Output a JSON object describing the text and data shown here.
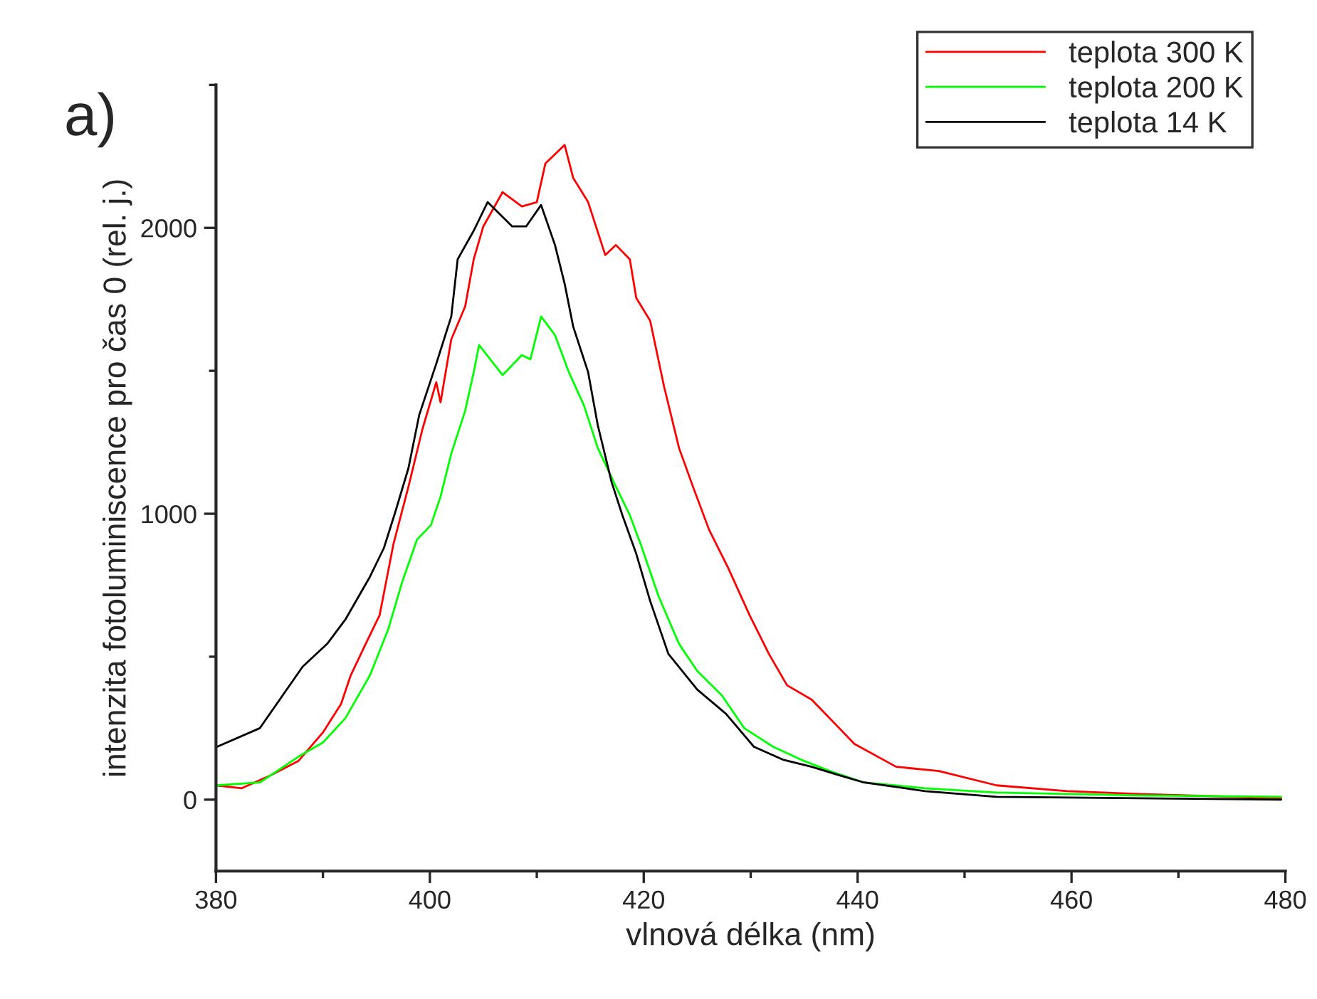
{
  "chart_data": {
    "type": "line",
    "xlabel": "vlnová délka (nm)",
    "ylabel": "intenzita fotoluminiscence pro čas 0 (rel. j.)",
    "annotations": [
      "a)"
    ],
    "xlim": [
      380,
      480
    ],
    "xticks": [
      380,
      400,
      420,
      440,
      460,
      480
    ],
    "ylim": [
      -250,
      2500
    ],
    "yticks": [
      0,
      1000,
      2000
    ],
    "grid": false,
    "legend": "top right",
    "marker": "none",
    "line_style": "solid",
    "series": [
      {
        "name": "teplota 300 K",
        "color": "#ff0000",
        "x": [
          380.0,
          382.4,
          385.1,
          387.7,
          390.0,
          391.7,
          392.6,
          394.0,
          395.3,
          396.6,
          398.0,
          399.3,
          400.6,
          401.0,
          402.0,
          403.3,
          404.1,
          405.0,
          406.8,
          408.6,
          410.0,
          410.8,
          412.6,
          413.4,
          414.8,
          416.4,
          417.4,
          418.7,
          419.3,
          420.6,
          421.9,
          423.3,
          424.6,
          426.1,
          427.9,
          429.9,
          431.7,
          433.4,
          435.7,
          437.9,
          439.7,
          443.6,
          447.6,
          453.0,
          459.6,
          466.3,
          479.6
        ],
        "values": [
          50,
          40,
          85,
          135,
          235,
          335,
          435,
          545,
          645,
          895,
          1095,
          1295,
          1460,
          1390,
          1610,
          1725,
          1890,
          2005,
          2125,
          2075,
          2090,
          2225,
          2290,
          2175,
          2090,
          1905,
          1940,
          1890,
          1755,
          1675,
          1445,
          1230,
          1095,
          945,
          810,
          645,
          510,
          400,
          350,
          265,
          195,
          115,
          100,
          50,
          30,
          20,
          5
        ]
      },
      {
        "name": "teplota 200 K",
        "color": "#00ff00",
        "x": [
          380.0,
          384.1,
          387.7,
          390.0,
          392.1,
          394.4,
          396.1,
          397.4,
          398.8,
          400.1,
          401.0,
          402.0,
          403.3,
          404.1,
          404.6,
          406.8,
          408.6,
          409.4,
          410.4,
          411.7,
          413.0,
          414.4,
          415.7,
          417.4,
          418.7,
          419.7,
          421.4,
          423.3,
          425.0,
          427.3,
          429.4,
          432.1,
          434.7,
          437.4,
          440.6,
          446.3,
          453.0,
          466.3,
          479.6
        ],
        "values": [
          50,
          60,
          150,
          200,
          285,
          435,
          595,
          760,
          910,
          960,
          1060,
          1210,
          1360,
          1495,
          1590,
          1485,
          1555,
          1540,
          1690,
          1625,
          1495,
          1380,
          1230,
          1095,
          995,
          895,
          710,
          545,
          450,
          365,
          250,
          185,
          140,
          100,
          60,
          40,
          25,
          15,
          10
        ]
      },
      {
        "name": "teplota 14 K",
        "color": "#000000",
        "x": [
          380.1,
          384.1,
          388.1,
          390.4,
          392.1,
          394.4,
          395.7,
          396.8,
          398.0,
          399.0,
          400.6,
          402.0,
          402.6,
          404.1,
          405.4,
          407.7,
          409.0,
          410.4,
          411.7,
          412.6,
          413.4,
          414.8,
          415.7,
          417.0,
          418.0,
          419.3,
          420.6,
          422.3,
          425.0,
          427.7,
          430.3,
          433.0,
          435.7,
          438.3,
          440.6,
          446.3,
          453.0,
          466.3,
          479.6
        ],
        "values": [
          185,
          250,
          465,
          545,
          630,
          780,
          880,
          1010,
          1160,
          1345,
          1525,
          1690,
          1890,
          1990,
          2090,
          2005,
          2005,
          2080,
          1940,
          1805,
          1655,
          1495,
          1310,
          1110,
          995,
          860,
          695,
          510,
          385,
          300,
          185,
          140,
          115,
          85,
          60,
          30,
          10,
          5,
          0
        ]
      }
    ]
  }
}
